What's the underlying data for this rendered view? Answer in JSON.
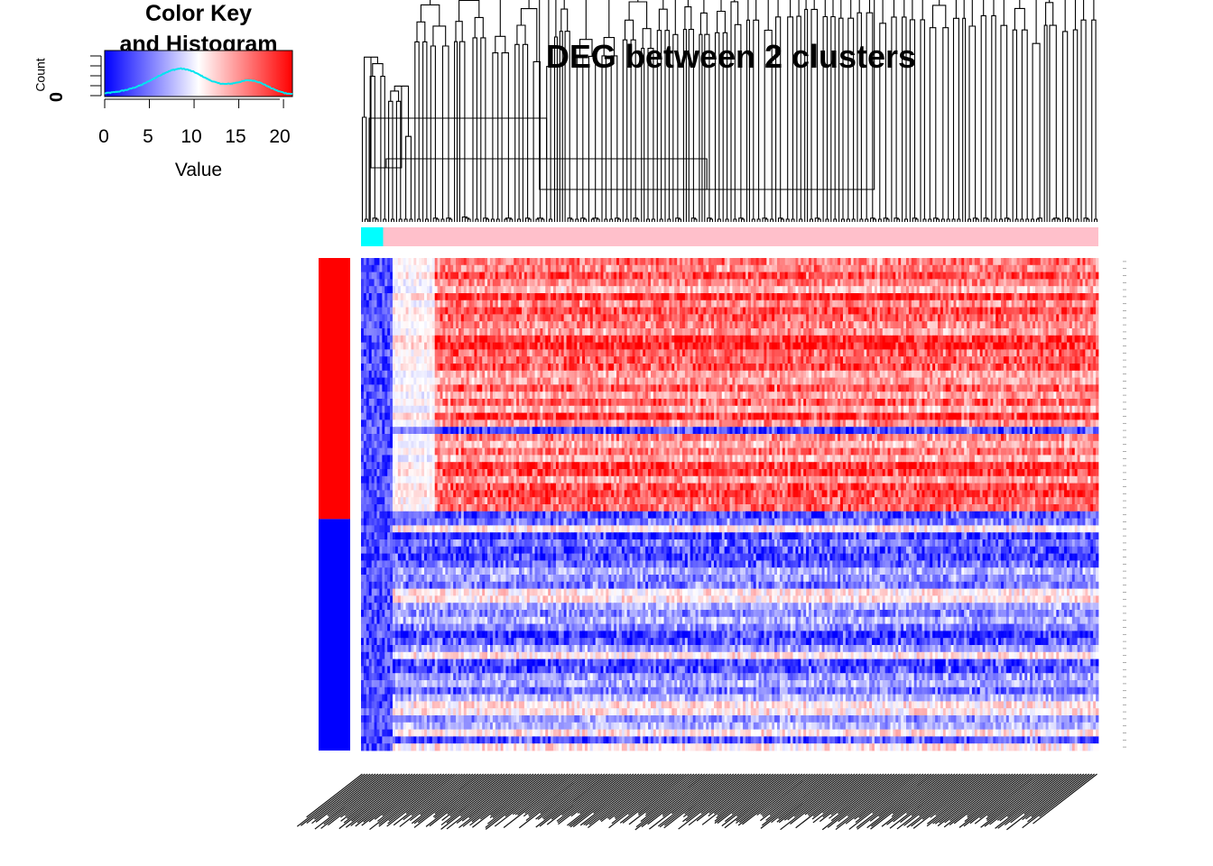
{
  "chart_data": {
    "type": "heatmap",
    "title": "DEG between 2 clusters",
    "color_key": {
      "title_line1": "Color Key",
      "title_line2": "and Histogram",
      "xlabel": "Value",
      "ylabel": "Count",
      "y_tick_zero": "0",
      "x_ticks": [
        "0",
        "5",
        "10",
        "15",
        "20"
      ],
      "x_range": [
        0,
        21
      ],
      "colors": [
        "#0000ff",
        "#ffffff",
        "#ff0000"
      ],
      "histogram_color": "#00e5ee",
      "histogram_density": [
        0.05,
        0.08,
        0.12,
        0.18,
        0.26,
        0.36,
        0.5,
        0.64,
        0.78,
        0.88,
        0.94,
        0.9,
        0.8,
        0.66,
        0.52,
        0.42,
        0.38,
        0.4,
        0.46,
        0.52,
        0.5,
        0.4,
        0.26,
        0.14,
        0.06,
        0.02
      ]
    },
    "column_clusters": [
      {
        "color": "#00ffff",
        "fraction": 0.03
      },
      {
        "color": "#ffc0cb",
        "fraction": 0.97
      }
    ],
    "row_groups": [
      {
        "color": "#ff0000",
        "fraction": 0.53
      },
      {
        "color": "#0000ff",
        "fraction": 0.47
      }
    ],
    "n_rows": 70,
    "n_columns": 280
  }
}
